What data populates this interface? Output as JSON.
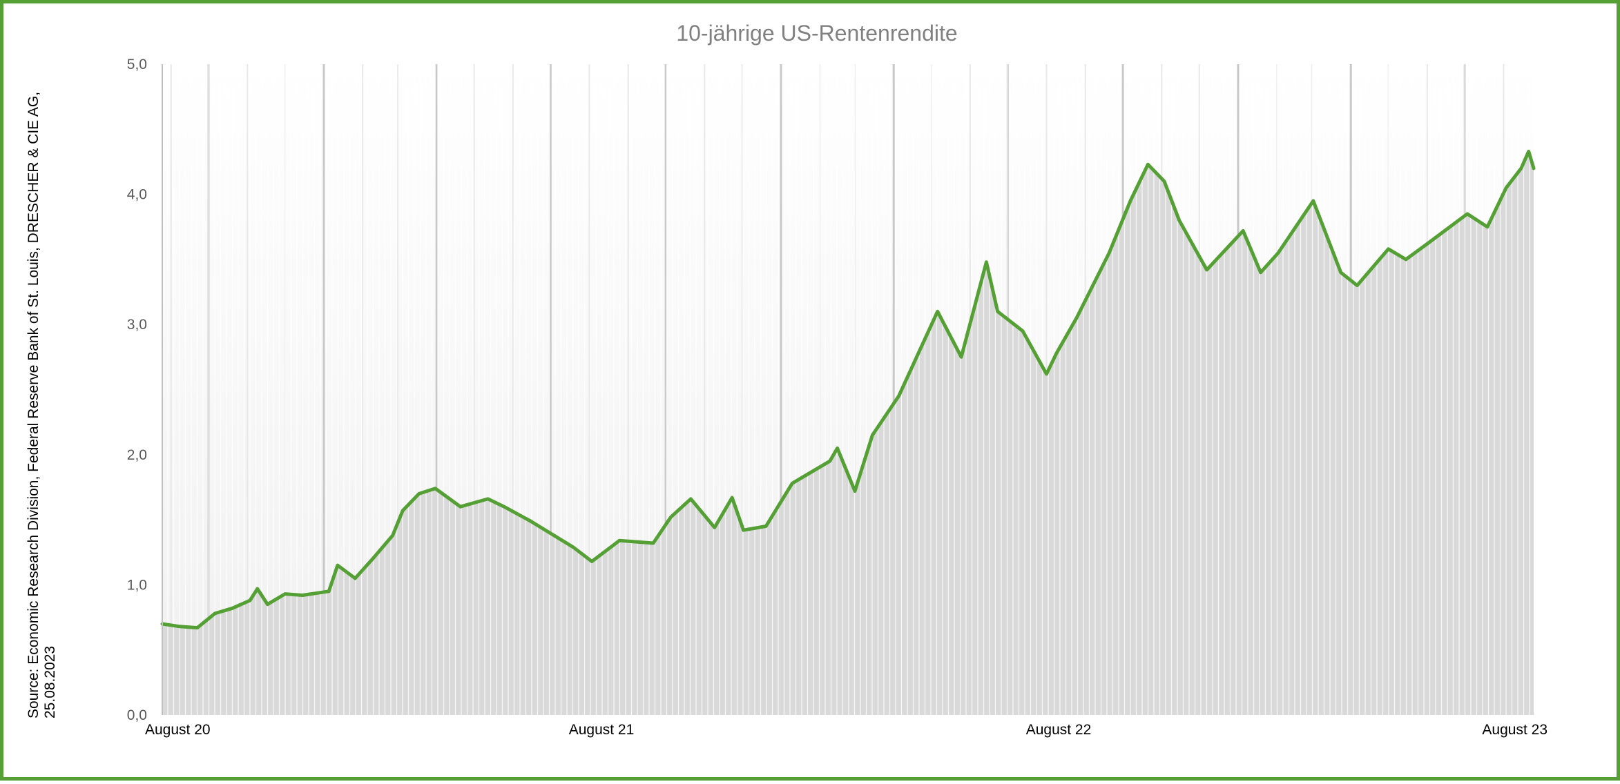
{
  "chart_data": {
    "type": "line",
    "title": "10-jährige US-Rentenrendite",
    "xlabel": "",
    "ylabel": "",
    "source_line1": "Source: Economic Research Division, Federal Reserve Bank of St. Louis, DRESCHER & CIE AG,",
    "source_line2": "25.08.2023",
    "ylim": [
      0,
      5
    ],
    "yticks": [
      "0,0",
      "1,0",
      "2,0",
      "3,0",
      "4,0",
      "5,0"
    ],
    "xlim": [
      "2020-08-25",
      "2023-08-25"
    ],
    "xticks": [
      {
        "date": "2020-08-25",
        "label": "August 20"
      },
      {
        "date": "2021-08-25",
        "label": "August 21"
      },
      {
        "date": "2022-08-25",
        "label": "August 22"
      },
      {
        "date": "2023-08-25",
        "label": "August 23"
      }
    ],
    "grid": "vertical",
    "legend": "none",
    "colors": {
      "line": "#55a035",
      "fill": "#d9d9d9",
      "frame": "#55a035"
    },
    "series": [
      {
        "x": [
          "2020-08-25",
          "2020-09-08",
          "2020-09-22",
          "2020-10-06",
          "2020-10-20",
          "2020-11-03",
          "2020-11-09",
          "2020-11-17",
          "2020-12-01",
          "2020-12-15",
          "2021-01-05",
          "2021-01-12",
          "2021-01-26",
          "2021-02-09",
          "2021-02-25",
          "2021-03-05",
          "2021-03-18",
          "2021-03-31",
          "2021-04-20",
          "2021-05-12",
          "2021-05-25",
          "2021-06-15",
          "2021-07-19",
          "2021-08-03",
          "2021-08-25",
          "2021-09-21",
          "2021-10-05",
          "2021-10-21",
          "2021-11-09",
          "2021-11-23",
          "2021-12-02",
          "2021-12-20",
          "2022-01-10",
          "2022-02-09",
          "2022-02-15",
          "2022-03-01",
          "2022-03-15",
          "2022-04-05",
          "2022-05-06",
          "2022-05-25",
          "2022-06-14",
          "2022-06-23",
          "2022-07-13",
          "2022-08-01",
          "2022-08-09",
          "2022-08-25",
          "2022-09-20",
          "2022-10-07",
          "2022-10-21",
          "2022-11-03",
          "2022-11-15",
          "2022-12-07",
          "2023-01-05",
          "2023-01-19",
          "2023-02-02",
          "2023-03-02",
          "2023-03-24",
          "2023-04-06",
          "2023-05-01",
          "2023-05-15",
          "2023-06-01",
          "2023-07-03",
          "2023-07-19",
          "2023-08-03",
          "2023-08-15",
          "2023-08-21",
          "2023-08-25"
        ],
        "y": [
          0.7,
          0.68,
          0.67,
          0.78,
          0.82,
          0.88,
          0.97,
          0.85,
          0.93,
          0.92,
          0.95,
          1.15,
          1.05,
          1.2,
          1.38,
          1.57,
          1.7,
          1.74,
          1.6,
          1.66,
          1.6,
          1.49,
          1.29,
          1.18,
          1.34,
          1.32,
          1.52,
          1.66,
          1.44,
          1.67,
          1.42,
          1.45,
          1.78,
          1.95,
          2.05,
          1.72,
          2.15,
          2.45,
          3.1,
          2.75,
          3.48,
          3.1,
          2.95,
          2.62,
          2.78,
          3.05,
          3.55,
          3.95,
          4.23,
          4.1,
          3.8,
          3.42,
          3.72,
          3.4,
          3.55,
          3.95,
          3.4,
          3.3,
          3.58,
          3.5,
          3.62,
          3.85,
          3.75,
          4.05,
          4.2,
          4.33,
          4.2
        ]
      }
    ]
  }
}
